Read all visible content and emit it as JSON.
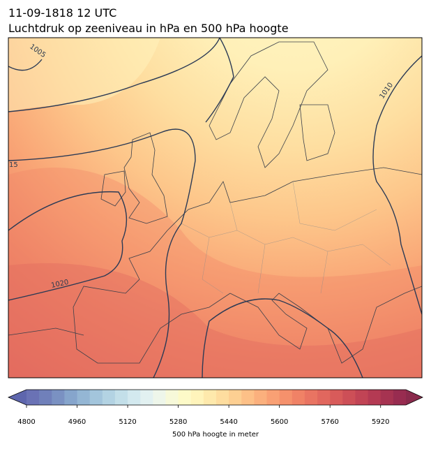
{
  "header": {
    "title_line1": "11-09-1818 12 UTC",
    "title_line2": "Luchtdruk op zeeniveau in hPa en 500 hPa hoogte"
  },
  "map": {
    "contour_labels": [
      "1005",
      "1010",
      "15",
      "1020"
    ]
  },
  "colorbar": {
    "lim": [
      4800,
      6000
    ],
    "ticks": [
      4800,
      4960,
      5120,
      5280,
      5440,
      5600,
      5760,
      5920
    ],
    "label": "500 hPa hoogte in meter",
    "colors": [
      "#6a72b5",
      "#7080ba",
      "#7a91c2",
      "#86a5cc",
      "#94b6d4",
      "#a3c5dc",
      "#b3d3e3",
      "#c3dfe9",
      "#d3e9ef",
      "#e2f1f1",
      "#eef6ea",
      "#f7f9d9",
      "#fdfac8",
      "#fff4bb",
      "#fee9ac",
      "#fedd9f",
      "#fdcf92",
      "#fdc087",
      "#fbb07d",
      "#f9a074",
      "#f5916c",
      "#f08266",
      "#e97462",
      "#e1675e",
      "#d85b5a",
      "#cd4f57",
      "#c14455",
      "#b43a53",
      "#a63351",
      "#982c50"
    ],
    "extend_colors": [
      "#5e66ad",
      "#8a2a4c"
    ]
  }
}
